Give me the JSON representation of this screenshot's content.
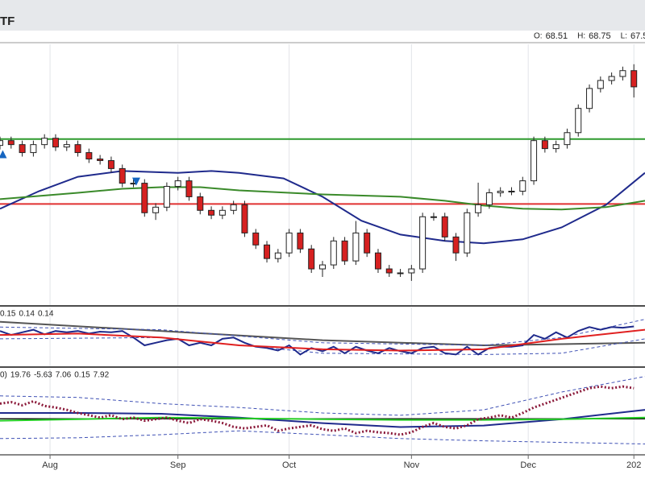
{
  "header": {
    "title": "TF",
    "ohlc": [
      {
        "label": "O:",
        "value": 68.51
      },
      {
        "label": "H:",
        "value": 68.75
      },
      {
        "label": "L:",
        "value": 67.5
      }
    ]
  },
  "chart_data": [
    {
      "type": "candlestick",
      "xlim": [
        0,
        116
      ],
      "ylim": [
        59.7,
        69.5
      ],
      "xticks": [
        {
          "value": 9,
          "label": "Aug"
        },
        {
          "value": 32,
          "label": "Sep"
        },
        {
          "value": 52,
          "label": "Oct"
        },
        {
          "value": 74,
          "label": "Nov"
        },
        {
          "value": 95,
          "label": "Dec"
        },
        {
          "value": 114,
          "label": "202"
        }
      ],
      "candles": {
        "up_color": "#ffffff",
        "down_color": "#d62020",
        "x": [
          0,
          2,
          4,
          6,
          8,
          10,
          12,
          14,
          16,
          18,
          20,
          22,
          24,
          26,
          28,
          30,
          32,
          34,
          36,
          38,
          40,
          42,
          44,
          46,
          48,
          50,
          52,
          54,
          56,
          58,
          60,
          62,
          64,
          66,
          68,
          70,
          72,
          74,
          76,
          78,
          80,
          82,
          84,
          86,
          88,
          90,
          92,
          94,
          96,
          98,
          100,
          102,
          104,
          106,
          108,
          110,
          112,
          114
        ],
        "open": [
          65.7,
          65.88,
          65.73,
          65.43,
          65.73,
          65.97,
          65.64,
          65.73,
          65.43,
          65.19,
          65.13,
          64.83,
          64.28,
          64.28,
          63.17,
          63.38,
          64.16,
          64.37,
          63.77,
          63.26,
          63.08,
          63.26,
          63.47,
          62.41,
          61.96,
          61.45,
          61.66,
          62.41,
          61.81,
          61.06,
          61.21,
          62.11,
          61.36,
          62.41,
          61.66,
          61.06,
          60.91,
          60.91,
          61.06,
          63.02,
          63.02,
          62.26,
          61.66,
          63.17,
          63.47,
          63.92,
          63.98,
          63.98,
          64.37,
          65.88,
          65.58,
          65.73,
          66.18,
          67.09,
          67.84,
          68.14,
          68.29,
          68.51
        ],
        "high": [
          66.03,
          66.03,
          65.88,
          65.88,
          66.12,
          66.12,
          65.88,
          65.88,
          65.58,
          65.34,
          65.28,
          64.98,
          64.43,
          64.43,
          63.53,
          64.31,
          64.52,
          64.52,
          63.92,
          63.41,
          63.41,
          63.62,
          63.62,
          62.56,
          62.11,
          61.81,
          62.56,
          62.56,
          61.96,
          61.36,
          62.26,
          62.26,
          62.86,
          62.56,
          61.81,
          61.21,
          61.06,
          61.21,
          63.17,
          63.17,
          63.17,
          62.41,
          63.32,
          64.3,
          64.07,
          64.13,
          64.13,
          64.52,
          66.03,
          66.03,
          65.88,
          66.33,
          67.24,
          67.99,
          68.29,
          68.44,
          68.66,
          68.75
        ],
        "low": [
          65.55,
          65.58,
          65.28,
          65.28,
          65.58,
          65.49,
          65.49,
          65.28,
          65.04,
          64.98,
          64.68,
          64.13,
          64.13,
          63.02,
          62.9,
          63.23,
          64.01,
          63.62,
          63.11,
          62.93,
          62.93,
          63.11,
          62.26,
          61.81,
          61.3,
          61.3,
          61.51,
          61.66,
          60.91,
          60.76,
          61.06,
          61.21,
          61.21,
          61.51,
          60.91,
          60.76,
          60.76,
          60.61,
          60.91,
          62.87,
          62.11,
          61.36,
          61.51,
          63.02,
          63.32,
          63.77,
          63.83,
          63.83,
          64.22,
          65.43,
          65.43,
          65.58,
          66.03,
          66.94,
          67.69,
          67.99,
          68.14,
          67.5
        ],
        "close": [
          65.88,
          65.73,
          65.43,
          65.73,
          65.97,
          65.64,
          65.73,
          65.43,
          65.19,
          65.13,
          64.83,
          64.28,
          64.28,
          63.17,
          63.38,
          64.16,
          64.37,
          63.77,
          63.26,
          63.08,
          63.26,
          63.47,
          62.41,
          61.96,
          61.45,
          61.66,
          62.41,
          61.81,
          61.06,
          61.21,
          62.11,
          61.36,
          62.41,
          61.66,
          61.06,
          60.91,
          60.91,
          61.06,
          63.02,
          63.02,
          62.26,
          61.66,
          63.17,
          63.47,
          63.92,
          63.98,
          63.98,
          64.37,
          65.88,
          65.58,
          65.73,
          66.18,
          67.09,
          67.84,
          68.14,
          68.29,
          68.51,
          67.9
        ]
      },
      "hlines": [
        {
          "value": 65.94,
          "color": "#2e9a2e"
        },
        {
          "value": 63.5,
          "color": "#e03030"
        }
      ],
      "series": [
        {
          "color": "#1f2a8c",
          "x": [
            0,
            7,
            14,
            22,
            32,
            38,
            43,
            51,
            58,
            65,
            72,
            80,
            87,
            94,
            101,
            109,
            116
          ],
          "values": [
            63.32,
            63.98,
            64.52,
            64.74,
            64.67,
            64.74,
            64.67,
            64.46,
            63.77,
            62.87,
            62.35,
            62.11,
            62.02,
            62.17,
            62.62,
            63.47,
            64.67
          ]
        },
        {
          "color": "#3a8a2a",
          "x": [
            0,
            14,
            22,
            29,
            36,
            43,
            58,
            72,
            80,
            87,
            94,
            101,
            109,
            116
          ],
          "values": [
            63.68,
            63.92,
            64.07,
            64.13,
            64.13,
            64.01,
            63.86,
            63.77,
            63.62,
            63.44,
            63.32,
            63.29,
            63.38,
            63.62
          ]
        }
      ],
      "signals": [
        {
          "x": 0.5,
          "value": 65.34,
          "direction": "up",
          "color": "#1565c0"
        },
        {
          "x": 24.5,
          "value": 64.37,
          "direction": "down",
          "color": "#1565c0"
        }
      ]
    },
    {
      "type": "line",
      "xlim": [
        0,
        116
      ],
      "ylim": [
        0.08,
        0.17
      ],
      "legend_values": [
        {
          "value": 0.15,
          "color": "#c62828"
        },
        {
          "value": 0.14,
          "color": "#333333"
        },
        {
          "value": 0.14,
          "color": "#333333"
        }
      ],
      "series": [
        {
          "color": "#555555",
          "dash": "solid",
          "x": [
            0,
            58,
            87,
            116
          ],
          "values": [
            0.148,
            0.12,
            0.112,
            0.116
          ]
        },
        {
          "color": "#3f51b5",
          "dash": "dashed",
          "x": [
            0,
            29,
            58,
            87,
            101,
            116
          ],
          "values": [
            0.14,
            0.136,
            0.116,
            0.112,
            0.124,
            0.152
          ]
        },
        {
          "color": "#3f51b5",
          "dash": "dashed",
          "x": [
            0,
            29,
            58,
            87,
            101,
            116
          ],
          "values": [
            0.122,
            0.124,
            0.1,
            0.098,
            0.1,
            0.122
          ]
        },
        {
          "color": "#1f2a8c",
          "dash": "solid",
          "x": [
            0,
            2,
            4,
            6,
            8,
            10,
            12,
            14,
            16,
            18,
            20,
            22,
            24,
            26,
            28,
            30,
            32,
            34,
            36,
            38,
            40,
            42,
            44,
            46,
            48,
            50,
            52,
            54,
            56,
            58,
            60,
            62,
            64,
            66,
            68,
            70,
            72,
            74,
            76,
            78,
            80,
            82,
            84,
            86,
            88,
            90,
            92,
            94,
            96,
            98,
            100,
            102,
            104,
            106,
            108,
            110,
            112,
            114
          ],
          "values": [
            0.134,
            0.128,
            0.132,
            0.136,
            0.129,
            0.134,
            0.132,
            0.134,
            0.13,
            0.133,
            0.132,
            0.134,
            0.124,
            0.112,
            0.116,
            0.12,
            0.122,
            0.112,
            0.116,
            0.112,
            0.122,
            0.124,
            0.116,
            0.11,
            0.108,
            0.104,
            0.112,
            0.098,
            0.108,
            0.103,
            0.11,
            0.1,
            0.11,
            0.104,
            0.1,
            0.108,
            0.103,
            0.1,
            0.108,
            0.11,
            0.1,
            0.098,
            0.11,
            0.098,
            0.108,
            0.11,
            0.11,
            0.112,
            0.128,
            0.122,
            0.132,
            0.124,
            0.134,
            0.14,
            0.136,
            0.14,
            0.139,
            0.141
          ]
        },
        {
          "color": "#e02020",
          "dash": "solid",
          "x": [
            0,
            14,
            29,
            43,
            58,
            72,
            87,
            101,
            116
          ],
          "values": [
            0.128,
            0.13,
            0.124,
            0.112,
            0.106,
            0.104,
            0.106,
            0.122,
            0.136
          ]
        }
      ]
    },
    {
      "type": "line",
      "xlim": [
        0,
        116
      ],
      "ylim": [
        -40,
        57
      ],
      "reference": 0,
      "legend_prefix": "0)",
      "legend_values": [
        {
          "value": 19.76,
          "color": "#1f2a8c"
        },
        {
          "value": -5.63,
          "color": "#1f2a8c"
        },
        {
          "value": 7.06,
          "color": "#1f2a8c"
        },
        {
          "value": 0.15,
          "color": "#22aa22"
        },
        {
          "value": 7.92,
          "color": "#c62828"
        }
      ],
      "series": [
        {
          "color": "#3f51b5",
          "dash": "dashed",
          "x": [
            0,
            14,
            29,
            43,
            58,
            72,
            87,
            101,
            116
          ],
          "values": [
            26.1,
            24.3,
            17.3,
            12.9,
            6.7,
            4.0,
            10.2,
            30.5,
            48.1
          ]
        },
        {
          "color": "#3f51b5",
          "dash": "dashed",
          "x": [
            0,
            14,
            29,
            43,
            58,
            72,
            87,
            101,
            116
          ],
          "values": [
            -22.4,
            -21.5,
            -18.0,
            -13.6,
            -18.0,
            -22.4,
            -25.0,
            -26.8,
            -28.6
          ]
        },
        {
          "color": "#1f2a8c",
          "dash": "solid",
          "x": [
            0,
            14,
            29,
            43,
            58,
            72,
            87,
            101,
            116
          ],
          "values": [
            6.7,
            6.7,
            5.8,
            1.4,
            -4.9,
            -9.3,
            -7.6,
            -0.4,
            10.2
          ]
        },
        {
          "color": "#22cc22",
          "dash": "solid",
          "x": [
            0,
            14,
            29,
            43,
            58,
            72,
            87,
            101,
            116
          ],
          "values": [
            -2.1,
            -0.4,
            1.4,
            0.5,
            -0.4,
            -1.2,
            -1.2,
            -0.4,
            1.4
          ]
        },
        {
          "color": "#8b1a3a",
          "dash": "dotted",
          "x": [
            0,
            2,
            4,
            6,
            8,
            10,
            12,
            14,
            16,
            18,
            20,
            22,
            24,
            26,
            28,
            30,
            32,
            34,
            36,
            38,
            40,
            42,
            44,
            46,
            48,
            50,
            52,
            54,
            56,
            58,
            60,
            62,
            64,
            66,
            68,
            70,
            72,
            74,
            76,
            78,
            80,
            82,
            84,
            86,
            88,
            90,
            92,
            94,
            96,
            98,
            100,
            102,
            104,
            106,
            108,
            110,
            112,
            114
          ],
          "values": [
            17.3,
            19.0,
            15.5,
            19.9,
            14.6,
            12.9,
            10.2,
            6.7,
            4.1,
            1.4,
            4.1,
            -0.4,
            1.4,
            -2.1,
            -0.4,
            1.4,
            -2.1,
            -4.8,
            -0.4,
            -2.1,
            -4.8,
            -9.2,
            -10.9,
            -9.2,
            -7.4,
            -13.6,
            -10.9,
            -9.2,
            -7.4,
            -11.8,
            -13.6,
            -10.9,
            -16.2,
            -13.6,
            -15.3,
            -16.2,
            -18.0,
            -15.3,
            -9.2,
            -4.8,
            -9.2,
            -10.9,
            -7.4,
            -0.4,
            1.4,
            4.1,
            1.4,
            6.7,
            12.9,
            17.3,
            21.7,
            26.1,
            30.5,
            34.9,
            36.7,
            34.9,
            36.7,
            34.9
          ]
        }
      ]
    }
  ]
}
